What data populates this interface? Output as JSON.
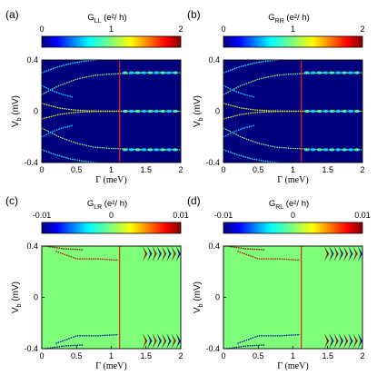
{
  "chart_data": [
    {
      "type": "heatmap",
      "panel_label": "(a)",
      "colorbar": {
        "label_main": "G",
        "label_sub": "LL",
        "label_unit": "(e²/ h)",
        "ticks": [
          "0",
          "1",
          "2"
        ],
        "range": [
          0,
          2
        ],
        "colormap": "jet"
      },
      "xlabel": "Γ (meV)",
      "ylabel_main": "V",
      "ylabel_sub": "b",
      "ylabel_unit": "(mV)",
      "xlim": [
        0,
        2
      ],
      "ylim": [
        -0.4,
        0.4
      ],
      "xticks": [
        "0",
        "0.5",
        "1",
        "1.5",
        "2"
      ],
      "yticks": [
        "0.4",
        "0",
        "-0.4"
      ],
      "background_color": "#00007f",
      "marker_line": {
        "x": 1.12,
        "color": "#e02020"
      },
      "curves": [
        {
          "x": [
            0,
            0.25,
            0.5,
            0.75,
            1.0,
            1.25,
            1.5,
            1.75,
            2.0
          ],
          "y": [
            0.13,
            0.2,
            0.25,
            0.28,
            0.29,
            0.295,
            0.3,
            0.3,
            0.3
          ],
          "value": 1.0
        },
        {
          "x": [
            0,
            0.25,
            0.5,
            0.75,
            1.0,
            1.25,
            1.5,
            1.75,
            2.0
          ],
          "y": [
            -0.13,
            -0.2,
            -0.25,
            -0.28,
            -0.29,
            -0.295,
            -0.3,
            -0.3,
            -0.3
          ],
          "value": 1.0
        },
        {
          "x": [
            0,
            0.25,
            0.5,
            0.75,
            1.0,
            1.25,
            1.5,
            1.75,
            2.0
          ],
          "y": [
            0.06,
            0.025,
            0.008,
            0.002,
            0,
            0,
            0,
            0,
            0
          ],
          "value": 1.2
        },
        {
          "x": [
            0,
            0.25,
            0.5,
            0.75,
            1.0,
            1.25,
            1.5,
            1.75,
            2.0
          ],
          "y": [
            -0.06,
            -0.025,
            -0.008,
            -0.002,
            0,
            0,
            0,
            0,
            0
          ],
          "value": 1.2
        },
        {
          "x": [
            0,
            0.2,
            0.4,
            0.6,
            0.8
          ],
          "y": [
            0.3,
            0.34,
            0.37,
            0.39,
            0.4
          ],
          "value": 0.8
        },
        {
          "x": [
            0,
            0.2,
            0.4,
            0.6,
            0.8
          ],
          "y": [
            -0.3,
            -0.34,
            -0.37,
            -0.39,
            -0.4
          ],
          "value": 0.8
        },
        {
          "x": [
            0,
            0.15,
            0.3,
            0.45
          ],
          "y": [
            0.2,
            0.16,
            0.13,
            0.11
          ],
          "value": 0.7
        },
        {
          "x": [
            0,
            0.15,
            0.3,
            0.45
          ],
          "y": [
            -0.2,
            -0.16,
            -0.13,
            -0.11
          ],
          "value": 0.7
        }
      ]
    },
    {
      "type": "heatmap",
      "panel_label": "(b)",
      "colorbar": {
        "label_main": "G",
        "label_sub": "RR",
        "label_unit": "(e²/ h)",
        "ticks": [
          "0",
          "1",
          "2"
        ],
        "range": [
          0,
          2
        ],
        "colormap": "jet"
      },
      "xlabel": "Γ (meV)",
      "ylabel_main": "V",
      "ylabel_sub": "b",
      "ylabel_unit": "(mV)",
      "xlim": [
        0,
        2
      ],
      "ylim": [
        -0.4,
        0.4
      ],
      "xticks": [
        "0",
        "0.5",
        "1",
        "1.5",
        "2"
      ],
      "yticks": [
        "0.4",
        "0",
        "-0.4"
      ],
      "background_color": "#00007f",
      "marker_line": {
        "x": 1.12,
        "color": "#e02020"
      },
      "curves": [
        {
          "x": [
            0,
            0.25,
            0.5,
            0.75,
            1.0,
            1.25,
            1.5,
            1.75,
            2.0
          ],
          "y": [
            0.13,
            0.2,
            0.25,
            0.28,
            0.29,
            0.295,
            0.3,
            0.3,
            0.3
          ],
          "value": 1.0
        },
        {
          "x": [
            0,
            0.25,
            0.5,
            0.75,
            1.0,
            1.25,
            1.5,
            1.75,
            2.0
          ],
          "y": [
            -0.13,
            -0.2,
            -0.25,
            -0.28,
            -0.29,
            -0.295,
            -0.3,
            -0.3,
            -0.3
          ],
          "value": 1.0
        },
        {
          "x": [
            0,
            0.25,
            0.5,
            0.75,
            1.0,
            1.25,
            1.5,
            1.75,
            2.0
          ],
          "y": [
            0.06,
            0.025,
            0.008,
            0.002,
            0,
            0,
            0,
            0,
            0
          ],
          "value": 1.2
        },
        {
          "x": [
            0,
            0.25,
            0.5,
            0.75,
            1.0,
            1.25,
            1.5,
            1.75,
            2.0
          ],
          "y": [
            -0.06,
            -0.025,
            -0.008,
            -0.002,
            0,
            0,
            0,
            0,
            0
          ],
          "value": 1.2
        },
        {
          "x": [
            0,
            0.2,
            0.4,
            0.6,
            0.8
          ],
          "y": [
            0.3,
            0.34,
            0.37,
            0.39,
            0.4
          ],
          "value": 0.8
        },
        {
          "x": [
            0,
            0.2,
            0.4,
            0.6,
            0.8
          ],
          "y": [
            -0.3,
            -0.34,
            -0.37,
            -0.39,
            -0.4
          ],
          "value": 0.8
        },
        {
          "x": [
            0,
            0.15,
            0.3,
            0.45
          ],
          "y": [
            0.2,
            0.16,
            0.13,
            0.11
          ],
          "value": 0.7
        },
        {
          "x": [
            0,
            0.15,
            0.3,
            0.45
          ],
          "y": [
            -0.2,
            -0.16,
            -0.13,
            -0.11
          ],
          "value": 0.7
        }
      ]
    },
    {
      "type": "heatmap",
      "panel_label": "(c)",
      "colorbar": {
        "label_main": "G",
        "label_sub": "LR",
        "label_unit": "(e²/ h)",
        "ticks": [
          "-0.01",
          "0",
          "0.01"
        ],
        "range": [
          -0.01,
          0.01
        ],
        "colormap": "jet"
      },
      "xlabel": "Γ (meV)",
      "ylabel_main": "V",
      "ylabel_sub": "b",
      "ylabel_unit": "(mV)",
      "xlim": [
        0,
        2
      ],
      "ylim": [
        -0.4,
        0.4
      ],
      "xticks": [
        "0",
        "0.5",
        "1",
        "1.5",
        "2"
      ],
      "yticks": [
        "0.4",
        "0",
        "-0.4"
      ],
      "background_color": "#80ff7a",
      "marker_line": {
        "x": 1.12,
        "color": "#e02020"
      },
      "curves": [
        {
          "x": [
            0.2,
            0.5,
            0.8,
            1.1
          ],
          "y": [
            0.36,
            0.3,
            0.3,
            0.29
          ],
          "value": 0.009
        },
        {
          "x": [
            0.2,
            0.5,
            0.8,
            1.1
          ],
          "y": [
            -0.36,
            -0.3,
            -0.3,
            -0.29
          ],
          "value": -0.009
        },
        {
          "x": [
            0.05,
            0.3,
            0.6
          ],
          "y": [
            0.4,
            0.38,
            0.37
          ],
          "value": 0.01
        },
        {
          "x": [
            0.05,
            0.3,
            0.6
          ],
          "y": [
            -0.4,
            -0.38,
            -0.37
          ],
          "value": -0.01
        }
      ],
      "patterns": [
        {
          "x_range": [
            1.45,
            2.0
          ],
          "y_range": [
            0.28,
            0.4
          ],
          "value_high": 0.01,
          "value_low": -0.01
        },
        {
          "x_range": [
            1.45,
            2.0
          ],
          "y_range": [
            -0.4,
            -0.28
          ],
          "value_high": 0.01,
          "value_low": -0.01
        }
      ]
    },
    {
      "type": "heatmap",
      "panel_label": "(d)",
      "colorbar": {
        "label_main": "G",
        "label_sub": "RL",
        "label_unit": "(e²/ h)",
        "ticks": [
          "-0.01",
          "0",
          "0.01"
        ],
        "range": [
          -0.01,
          0.01
        ],
        "colormap": "jet"
      },
      "xlabel": "Γ (meV)",
      "ylabel_main": "V",
      "ylabel_sub": "b",
      "ylabel_unit": "(mV)",
      "xlim": [
        0,
        2
      ],
      "ylim": [
        -0.4,
        0.4
      ],
      "xticks": [
        "0",
        "0.5",
        "1",
        "1.5",
        "2"
      ],
      "yticks": [
        "0.4",
        "0",
        "-0.4"
      ],
      "background_color": "#80ff7a",
      "marker_line": {
        "x": 1.12,
        "color": "#e02020"
      },
      "curves": [
        {
          "x": [
            0.2,
            0.5,
            0.8,
            1.1
          ],
          "y": [
            0.36,
            0.3,
            0.3,
            0.29
          ],
          "value": 0.009
        },
        {
          "x": [
            0.2,
            0.5,
            0.8,
            1.1
          ],
          "y": [
            -0.36,
            -0.3,
            -0.3,
            -0.29
          ],
          "value": -0.009
        },
        {
          "x": [
            0.05,
            0.3,
            0.6
          ],
          "y": [
            0.4,
            0.38,
            0.37
          ],
          "value": 0.01
        },
        {
          "x": [
            0.05,
            0.3,
            0.6
          ],
          "y": [
            -0.4,
            -0.38,
            -0.37
          ],
          "value": -0.01
        }
      ],
      "patterns": [
        {
          "x_range": [
            1.45,
            2.0
          ],
          "y_range": [
            0.28,
            0.4
          ],
          "value_high": 0.01,
          "value_low": -0.01
        },
        {
          "x_range": [
            1.45,
            2.0
          ],
          "y_range": [
            -0.4,
            -0.28
          ],
          "value_high": 0.01,
          "value_low": -0.01
        }
      ]
    }
  ]
}
